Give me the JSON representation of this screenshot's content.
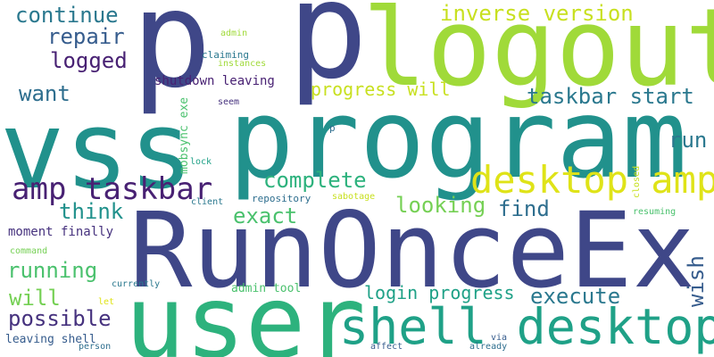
{
  "palette": {
    "indigo": "#3f4788",
    "purple": "#46327e",
    "deep_purple": "#482173",
    "blue": "#365c8d",
    "steel": "#2e6e8e",
    "teal_blue": "#2a788e",
    "teal": "#21918c",
    "sea": "#1fa187",
    "green": "#2db27d",
    "mid_green": "#4ac16d",
    "light_green": "#75d054",
    "lime": "#a0da39",
    "yellow_green": "#c8e020",
    "yellow": "#dfe318"
  },
  "words": {
    "p_one": "p",
    "p_two": "p",
    "logout": "logout",
    "vss": "vss",
    "program": "program",
    "runonceex": "RunOnceEx",
    "user": "user",
    "shell_desktop": "shell desktop",
    "desktop_amp": "desktop amp",
    "amp_taskbar": "amp taskbar",
    "inverse_version": "inverse version",
    "continue": "continue",
    "repair": "repair",
    "logged": "logged",
    "want": "want",
    "progress_will": "progress will",
    "taskbar_start": "taskbar start",
    "run": "run",
    "complete": "complete",
    "looking": "looking",
    "find": "find",
    "think": "think",
    "exact": "exact",
    "running": "running",
    "will": "will",
    "possible": "possible",
    "login_progress": "login progress",
    "execute": "execute",
    "wish": "wish",
    "shutdown_leaving": "shutdown leaving",
    "admin": "admin",
    "claiming": "claiming",
    "instances": "instances",
    "seem": "seem",
    "mobsync_exe": "mobsync exe",
    "p_small": "p",
    "lock": "lock",
    "repository": "repository",
    "client": "client",
    "sabotage": "sabotage",
    "closed": "closed",
    "resuming": "resuming",
    "moment_finally": "moment finally",
    "command": "command",
    "currently": "currently",
    "admin_tool": "admin tool",
    "let": "let",
    "leaving_shell": "leaving shell",
    "person": "person",
    "affect": "affect",
    "via": "via",
    "already": "already"
  }
}
